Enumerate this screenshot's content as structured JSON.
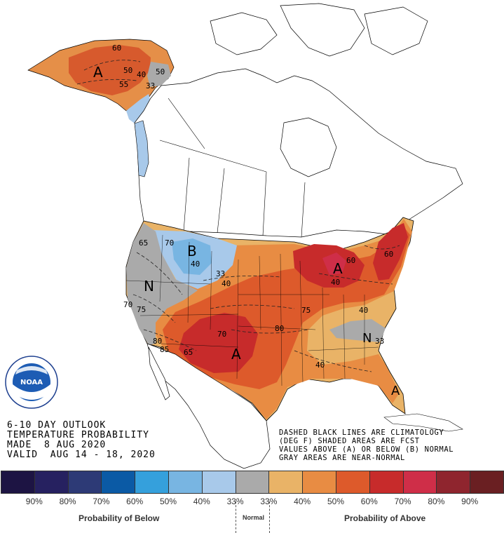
{
  "title": {
    "line1": "6-10 DAY OUTLOOK",
    "line2": "TEMPERATURE PROBABILITY",
    "line3": "MADE  8 AUG 2020",
    "line4": "VALID  AUG 14 - 18, 2020"
  },
  "notes": {
    "line1": "DASHED BLACK LINES ARE CLIMATOLOGY",
    "line2": "(DEG F) SHADED AREAS ARE FCST",
    "line3": "VALUES ABOVE (A) OR BELOW (B) NORMAL",
    "line4": "GRAY AREAS ARE NEAR-NORMAL"
  },
  "logo": {
    "text": "NOAA"
  },
  "regions": {
    "a_alaska": "A",
    "a_midwest": "A",
    "a_southwest": "A",
    "a_florida": "A",
    "b_northwest": "B",
    "n_west": "N",
    "n_southeast": "N"
  },
  "contours": {
    "ak_60": "60",
    "ak_50": "50",
    "ak_40": "40",
    "ak_55": "55",
    "ak_50b": "50",
    "ak_33": "33",
    "nw_70": "70",
    "nw_40": "40",
    "nw_33": "33",
    "w_65": "65",
    "w_40": "40",
    "w_70": "70",
    "w_75": "75",
    "mw_40": "40",
    "mw_60": "60",
    "ne_60": "60",
    "s_75": "75",
    "s_80": "80",
    "s_70": "70",
    "s_80b": "80",
    "s_85": "85",
    "s_65": "65",
    "se_40": "40",
    "se_33": "33",
    "se_40b": "40"
  },
  "legend": {
    "colors": [
      "#1d1443",
      "#262160",
      "#2d3a76",
      "#0b5aa5",
      "#35a0dc",
      "#78b5e2",
      "#a8c9ea",
      "#aaaaaa",
      "#e9b367",
      "#e88c43",
      "#dd5a2b",
      "#c72b2b",
      "#cf2e48",
      "#8f252e",
      "#6a1f22"
    ],
    "percents": [
      "90%",
      "80%",
      "70%",
      "60%",
      "50%",
      "40%",
      "33%",
      "33%",
      "40%",
      "50%",
      "60%",
      "70%",
      "80%",
      "90%"
    ],
    "below_label": "Probability of Below",
    "normal_label": "Normal",
    "above_label": "Probability of Above"
  }
}
